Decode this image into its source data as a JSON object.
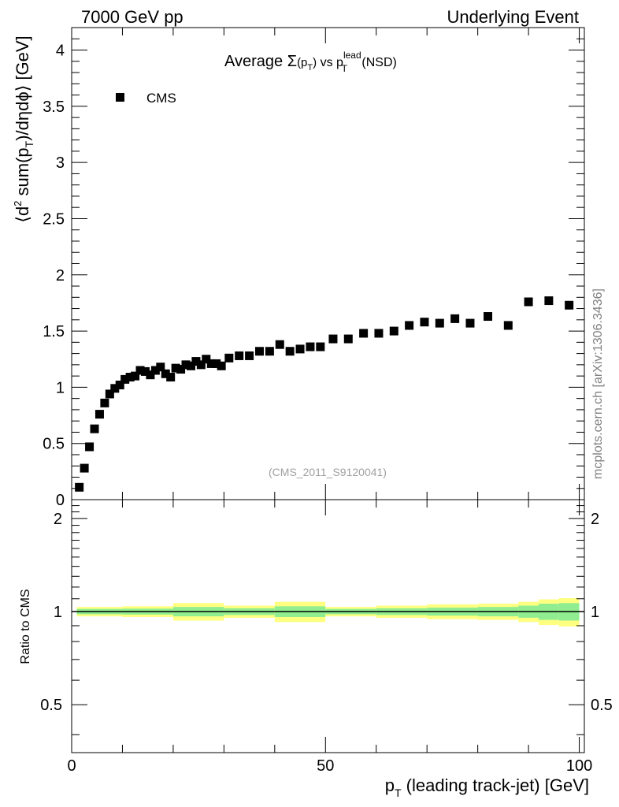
{
  "header": {
    "left": "7000 GeV pp",
    "right": "Underlying Event"
  },
  "plot_title": {
    "main": "Average ",
    "sigma": "Σ",
    "p1": "(p",
    "p1_sub": "T",
    "p1_close": ")",
    "vs": " vs p",
    "lead_sup": "lead",
    "lead_sub": "T",
    "nsd": " (NSD)"
  },
  "legend": {
    "label": "CMS"
  },
  "analysis_tag": "(CMS_2011_S9120041)",
  "side_label": "mcplots.cern.ch [arXiv:1306.3436]",
  "y_title": {
    "part1": "⟨d",
    "sup2": "2",
    "part2": " sum(p",
    "sub_t": "T",
    "part3": ")/dηdϕ⟩ [GeV]"
  },
  "x_title": {
    "p": "p",
    "sub_t": "T",
    "rest": " (leading track-jet) [GeV]"
  },
  "ratio_y_title": "Ratio to CMS",
  "colors": {
    "marker": "#000000",
    "band_inner": "#90ee90",
    "band_outer": "#ffff80",
    "axis": "#000000"
  },
  "chart_data": {
    "type": "scatter",
    "series": [
      {
        "name": "CMS",
        "x": [
          1.5,
          2.5,
          3.5,
          4.5,
          5.5,
          6.5,
          7.5,
          8.5,
          9.5,
          10.5,
          11.5,
          12.5,
          13.5,
          14.5,
          15.5,
          16.5,
          17.5,
          18.5,
          19.5,
          20.5,
          21.5,
          22.5,
          23.5,
          24.5,
          25.5,
          26.5,
          27.5,
          28.5,
          29.5,
          31,
          33,
          35,
          37,
          39,
          41,
          43,
          45,
          47,
          49,
          51.5,
          54.5,
          57.5,
          60.5,
          63.5,
          66.5,
          69.5,
          72.5,
          75.5,
          78.5,
          82,
          86,
          90,
          94,
          98
        ],
        "y": [
          0.11,
          0.28,
          0.47,
          0.63,
          0.76,
          0.86,
          0.94,
          0.99,
          1.02,
          1.07,
          1.09,
          1.1,
          1.15,
          1.14,
          1.11,
          1.15,
          1.18,
          1.12,
          1.09,
          1.17,
          1.16,
          1.2,
          1.19,
          1.23,
          1.2,
          1.25,
          1.21,
          1.21,
          1.19,
          1.26,
          1.28,
          1.28,
          1.32,
          1.32,
          1.38,
          1.32,
          1.34,
          1.36,
          1.36,
          1.43,
          1.43,
          1.48,
          1.48,
          1.5,
          1.55,
          1.58,
          1.57,
          1.61,
          1.57,
          1.63,
          1.55,
          1.76,
          1.77,
          1.73
        ]
      }
    ],
    "xlim": [
      0,
      101
    ],
    "ylim": [
      0,
      4.2
    ],
    "x_ticks": [
      0,
      50,
      100
    ],
    "x_tick_labels": [
      "0",
      "50",
      "100"
    ],
    "y_ticks": [
      0,
      0.5,
      1,
      1.5,
      2,
      2.5,
      3,
      3.5,
      4
    ],
    "y_tick_labels": [
      "0",
      "0.5",
      "1",
      "1.5",
      "2",
      "2.5",
      "3",
      "3.5",
      "4"
    ],
    "ratio": {
      "type": "area",
      "ylim": [
        0.35,
        2.3
      ],
      "log_scale": true,
      "y_ticks": [
        0.5,
        1,
        2
      ],
      "y_tick_labels": [
        "0.5",
        "1",
        "2"
      ],
      "bands": [
        {
          "x_range": [
            1,
            10
          ],
          "inner": 0.02,
          "outer": 0.035
        },
        {
          "x_range": [
            10,
            20
          ],
          "inner": 0.022,
          "outer": 0.04
        },
        {
          "x_range": [
            20,
            30
          ],
          "inner": 0.035,
          "outer": 0.065
        },
        {
          "x_range": [
            30,
            40
          ],
          "inner": 0.025,
          "outer": 0.045
        },
        {
          "x_range": [
            40,
            50
          ],
          "inner": 0.04,
          "outer": 0.075
        },
        {
          "x_range": [
            50,
            60
          ],
          "inner": 0.02,
          "outer": 0.035
        },
        {
          "x_range": [
            60,
            70
          ],
          "inner": 0.025,
          "outer": 0.045
        },
        {
          "x_range": [
            70,
            80
          ],
          "inner": 0.03,
          "outer": 0.055
        },
        {
          "x_range": [
            80,
            88
          ],
          "inner": 0.035,
          "outer": 0.06
        },
        {
          "x_range": [
            88,
            92
          ],
          "inner": 0.045,
          "outer": 0.075
        },
        {
          "x_range": [
            92,
            96
          ],
          "inner": 0.06,
          "outer": 0.095
        },
        {
          "x_range": [
            96,
            100
          ],
          "inner": 0.065,
          "outer": 0.105
        }
      ],
      "reference_line": 1
    }
  }
}
